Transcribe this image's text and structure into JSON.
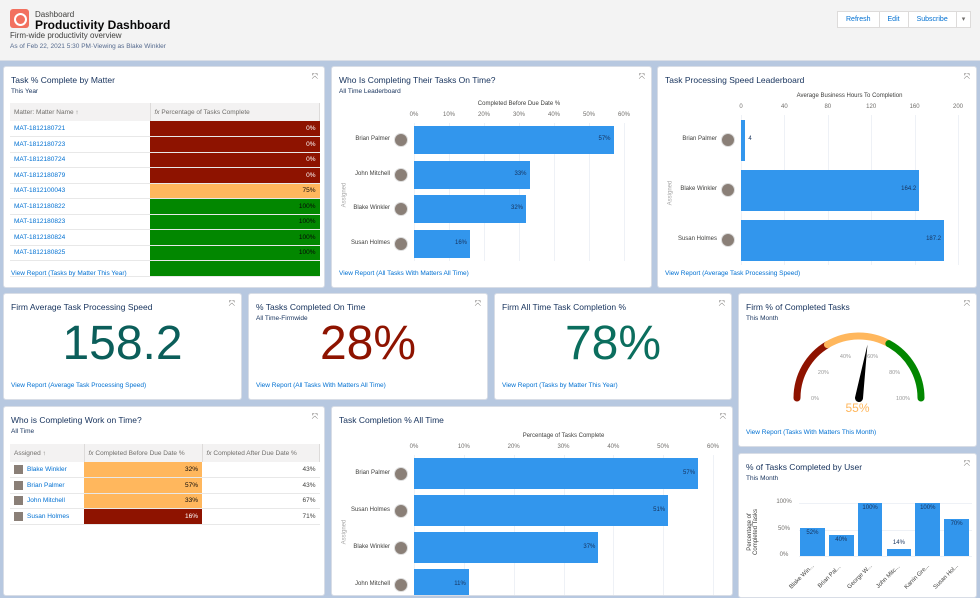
{
  "header": {
    "breadcrumb": "Dashboard",
    "title": "Productivity Dashboard",
    "subtitle": "Firm-wide productivity overview",
    "as_of": "As of Feb 22, 2021 5:30 PM·Viewing as Blake Winkler",
    "buttons": [
      "Refresh",
      "Edit",
      "Subscribe"
    ],
    "menu_icon": "caret-down-icon"
  },
  "colors": {
    "red": "#8e1300",
    "orange": "#ffb75d",
    "green": "#028700",
    "bar": "#3296ed",
    "link": "#0070d2"
  },
  "w1": {
    "title": "Task % Complete by Matter",
    "subtitle": "This Year",
    "col1": "Matter: Matter Name  ↑",
    "col2": "Percentage of Tasks Complete",
    "rows": [
      [
        "MAT-1812180721",
        "0%",
        "red"
      ],
      [
        "MAT-1812180723",
        "0%",
        "red"
      ],
      [
        "MAT-1812180724",
        "0%",
        "red"
      ],
      [
        "MAT-1812180879",
        "0%",
        "red"
      ],
      [
        "MAT-1812100043",
        "75%",
        "orange"
      ],
      [
        "MAT-1812180822",
        "100%",
        "green"
      ],
      [
        "MAT-1812180823",
        "100%",
        "green"
      ],
      [
        "MAT-1812180824",
        "100%",
        "green"
      ],
      [
        "MAT-1812180825",
        "100%",
        "green"
      ],
      [
        "",
        "",
        "green"
      ]
    ],
    "link": "View Report (Tasks by Matter This Year)"
  },
  "w2": {
    "title": "Who Is Completing Their Tasks On Time?",
    "subtitle": "All Time Leaderboard",
    "link": "View Report (All Tasks With Matters All Time)"
  },
  "w3": {
    "title": "Task Processing Speed Leaderboard",
    "link": "View Report (Average Task Processing Speed)"
  },
  "w4": {
    "title": "Firm Average Task Processing Speed",
    "value": "158.2",
    "link": "View Report (Average Task Processing Speed)",
    "color": "#0b5e5a"
  },
  "w5": {
    "title": "% Tasks Completed On Time",
    "subtitle": "All Time-Firmwide",
    "value": "28%",
    "link": "View Report (All Tasks With Matters All Time)",
    "color": "#8e1300"
  },
  "w6": {
    "title": "Firm All Time Task Completion %",
    "value": "78%",
    "link": "View Report (Tasks by Matter This Year)",
    "color": "#0b6e5e"
  },
  "w7": {
    "title": "Firm % of Completed Tasks",
    "subtitle": "This Month",
    "value": "55%",
    "value_num": 55,
    "ticks": [
      "0%",
      "20%",
      "40%",
      "60%",
      "80%",
      "100%"
    ],
    "bands": [
      {
        "from": 0,
        "to": 33,
        "color": "#8e1300"
      },
      {
        "from": 33,
        "to": 66,
        "color": "#ffb75d"
      },
      {
        "from": 66,
        "to": 100,
        "color": "#028700"
      }
    ],
    "link": "View Report (Tasks With Matters This Month)"
  },
  "w8": {
    "title": "Who is Completing Work on Time?",
    "subtitle": "All Time",
    "cols": [
      "Assigned  ↑",
      "Completed Before Due Date %",
      "Completed After Due Date %"
    ],
    "rows": [
      [
        "Blake Winkler",
        "32%",
        "orange",
        "43%"
      ],
      [
        "Brian Palmer",
        "57%",
        "orange",
        "43%"
      ],
      [
        "John Mitchell",
        "33%",
        "orange",
        "67%"
      ],
      [
        "Susan Holmes",
        "16%",
        "red",
        "71%"
      ]
    ]
  },
  "w9": {
    "title": "Task Completion % All Time"
  },
  "w10": {
    "title": "% of Tasks Completed by User",
    "subtitle": "This Month"
  },
  "chart_data": [
    {
      "type": "bar",
      "orientation": "horizontal",
      "title": "Who Is Completing Their Tasks On Time?",
      "xlabel": "Completed Before Due Date %",
      "ylabel": "Assigned",
      "categories": [
        "Brian Palmer",
        "John Mitchell",
        "Blake Winkler",
        "Susan Holmes"
      ],
      "values": [
        57,
        33,
        32,
        16
      ],
      "labels": [
        "57%",
        "33%",
        "32%",
        "16%"
      ],
      "ticks": [
        "0%",
        "10%",
        "20%",
        "30%",
        "40%",
        "50%",
        "60%"
      ],
      "xlim": [
        0,
        60
      ]
    },
    {
      "type": "bar",
      "orientation": "horizontal",
      "title": "Task Processing Speed Leaderboard",
      "xlabel": "Average Business Hours To Completion",
      "ylabel": "Assigned",
      "categories": [
        "Brian Palmer",
        "Blake Winkler",
        "Susan Holmes"
      ],
      "values": [
        4,
        164.2,
        187.2
      ],
      "labels": [
        "4",
        "164.2",
        "187.2"
      ],
      "ticks": [
        "0",
        "40",
        "80",
        "120",
        "160",
        "200"
      ],
      "xlim": [
        0,
        200
      ]
    },
    {
      "type": "bar",
      "orientation": "horizontal",
      "title": "Task Completion % All Time",
      "xlabel": "Percentage of Tasks Complete",
      "ylabel": "Assigned",
      "categories": [
        "Brian Palmer",
        "Susan Holmes",
        "Blake Winkler",
        "John Mitchell"
      ],
      "values": [
        57,
        51,
        37,
        11
      ],
      "labels": [
        "57%",
        "51%",
        "37%",
        "11%"
      ],
      "ticks": [
        "0%",
        "10%",
        "20%",
        "30%",
        "40%",
        "50%",
        "60%"
      ],
      "xlim": [
        0,
        60
      ]
    },
    {
      "type": "bar",
      "orientation": "vertical",
      "title": "% of Tasks Completed by User",
      "ylabel": "Percentage of Completed Tasks",
      "categories": [
        "Blake Win...",
        "Brian Pal...",
        "George W...",
        "John Mitc...",
        "Karrin Gre...",
        "Susan Hol..."
      ],
      "values": [
        52,
        40,
        100,
        14,
        100,
        70
      ],
      "labels": [
        "52%",
        "40%",
        "100%",
        "14%",
        "100%",
        "70%"
      ],
      "ticks": [
        "0%",
        "50%",
        "100%"
      ],
      "ylim": [
        0,
        100
      ]
    }
  ]
}
